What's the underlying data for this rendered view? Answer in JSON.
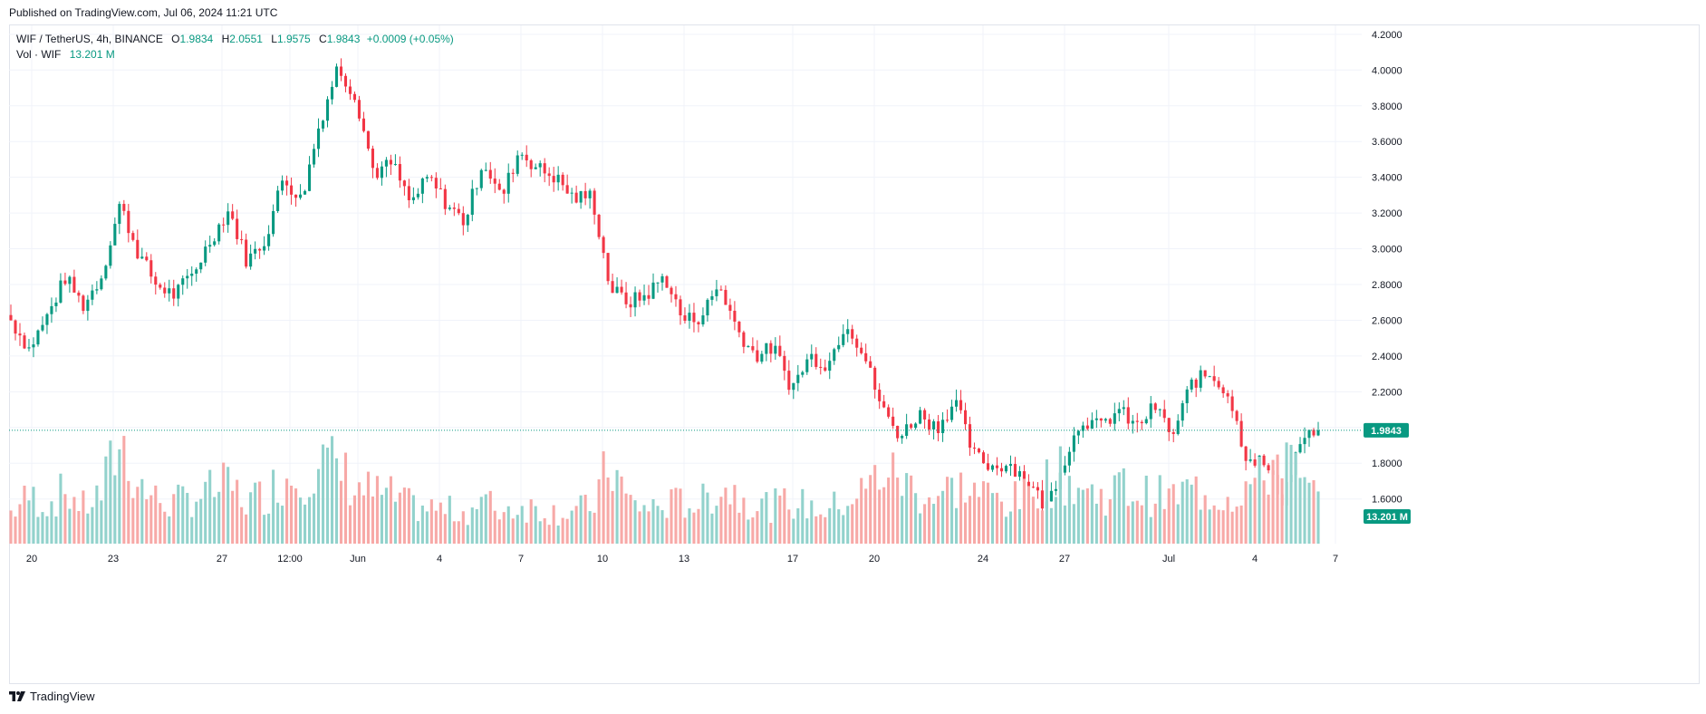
{
  "header": {
    "published": "Published on TradingView.com, Jul 06, 2024 11:21 UTC"
  },
  "legend": {
    "symbol": "WIF / TetherUS, 4h, BINANCE",
    "o_label": "O",
    "o_value": "1.9834",
    "h_label": "H",
    "h_value": "2.0551",
    "l_label": "L",
    "l_value": "1.9575",
    "c_label": "C",
    "c_value": "1.9843",
    "change": "+0.0009 (+0.05%)",
    "vol_label": "Vol · WIF",
    "vol_value": "13.201 M"
  },
  "footer": {
    "brand": "TradingView",
    "logo_icon": "tradingview-logo-icon"
  },
  "colors": {
    "up": "#089981",
    "down": "#f23645",
    "vol_up": "#92d2cc",
    "vol_down": "#f7a9a7",
    "grid": "#f0f3fa",
    "price_line": "#089981"
  },
  "chart_data": {
    "type": "candlestick",
    "symbol": "WIF / TetherUS",
    "interval": "4h",
    "exchange": "BINANCE",
    "y_axis": {
      "ticks": [
        "1.6000",
        "1.8000",
        "2.0000",
        "2.2000",
        "2.4000",
        "2.6000",
        "2.8000",
        "3.0000",
        "3.2000",
        "3.4000",
        "3.6000",
        "3.8000",
        "4.0000",
        "4.2000"
      ],
      "range": [
        1.35,
        4.25
      ]
    },
    "x_axis": {
      "labels": [
        "20",
        "23",
        "27",
        "12:00",
        "Jun",
        "4",
        "7",
        "10",
        "13",
        "17",
        "20",
        "24",
        "27",
        "Jul",
        "4",
        "7"
      ]
    },
    "last_price": "1.9843",
    "last_volume": "13.201 M",
    "anchors": [
      [
        2.6,
        0.3
      ],
      [
        2.44,
        0.45
      ],
      [
        2.62,
        0.38
      ],
      [
        2.84,
        0.5
      ],
      [
        2.68,
        0.35
      ],
      [
        2.85,
        0.48
      ],
      [
        3.25,
        1.0
      ],
      [
        2.98,
        0.58
      ],
      [
        2.8,
        0.42
      ],
      [
        2.74,
        0.38
      ],
      [
        2.86,
        0.45
      ],
      [
        3.05,
        0.5
      ],
      [
        3.22,
        0.55
      ],
      [
        2.93,
        0.4
      ],
      [
        3.05,
        0.48
      ],
      [
        3.4,
        0.62
      ],
      [
        3.27,
        0.66
      ],
      [
        3.7,
        0.78
      ],
      [
        4.02,
        0.72
      ],
      [
        3.85,
        0.55
      ],
      [
        3.42,
        0.48
      ],
      [
        3.48,
        0.45
      ],
      [
        3.25,
        0.36
      ],
      [
        3.4,
        0.34
      ],
      [
        3.25,
        0.32
      ],
      [
        3.15,
        0.3
      ],
      [
        3.5,
        0.4
      ],
      [
        3.28,
        0.32
      ],
      [
        3.55,
        0.36
      ],
      [
        3.45,
        0.34
      ],
      [
        3.4,
        0.3
      ],
      [
        3.28,
        0.32
      ],
      [
        3.3,
        0.34
      ],
      [
        2.78,
        0.78
      ],
      [
        2.7,
        0.4
      ],
      [
        2.74,
        0.34
      ],
      [
        2.85,
        0.36
      ],
      [
        2.6,
        0.4
      ],
      [
        2.62,
        0.38
      ],
      [
        2.8,
        0.55
      ],
      [
        2.55,
        0.48
      ],
      [
        2.4,
        0.38
      ],
      [
        2.45,
        0.36
      ],
      [
        2.22,
        0.4
      ],
      [
        2.4,
        0.35
      ],
      [
        2.35,
        0.32
      ],
      [
        2.6,
        0.42
      ],
      [
        2.4,
        0.5
      ],
      [
        2.1,
        0.7
      ],
      [
        1.95,
        0.62
      ],
      [
        2.08,
        0.48
      ],
      [
        2.0,
        0.45
      ],
      [
        2.15,
        0.55
      ],
      [
        1.85,
        0.5
      ],
      [
        1.78,
        0.45
      ],
      [
        1.8,
        0.4
      ],
      [
        1.7,
        0.45
      ],
      [
        1.55,
        0.6
      ],
      [
        1.82,
        0.65
      ],
      [
        2.05,
        0.52
      ],
      [
        2.0,
        0.45
      ],
      [
        2.1,
        0.55
      ],
      [
        2.0,
        0.48
      ],
      [
        2.12,
        0.46
      ],
      [
        1.95,
        0.44
      ],
      [
        2.25,
        0.52
      ],
      [
        2.3,
        0.48
      ],
      [
        2.2,
        0.45
      ],
      [
        1.85,
        0.55
      ],
      [
        1.8,
        0.6
      ],
      [
        1.6,
        0.95
      ],
      [
        1.92,
        0.55
      ],
      [
        1.98,
        0.42
      ]
    ],
    "candle_count": 290,
    "volume_axis": {
      "range": [
        0,
        1.0
      ]
    }
  }
}
